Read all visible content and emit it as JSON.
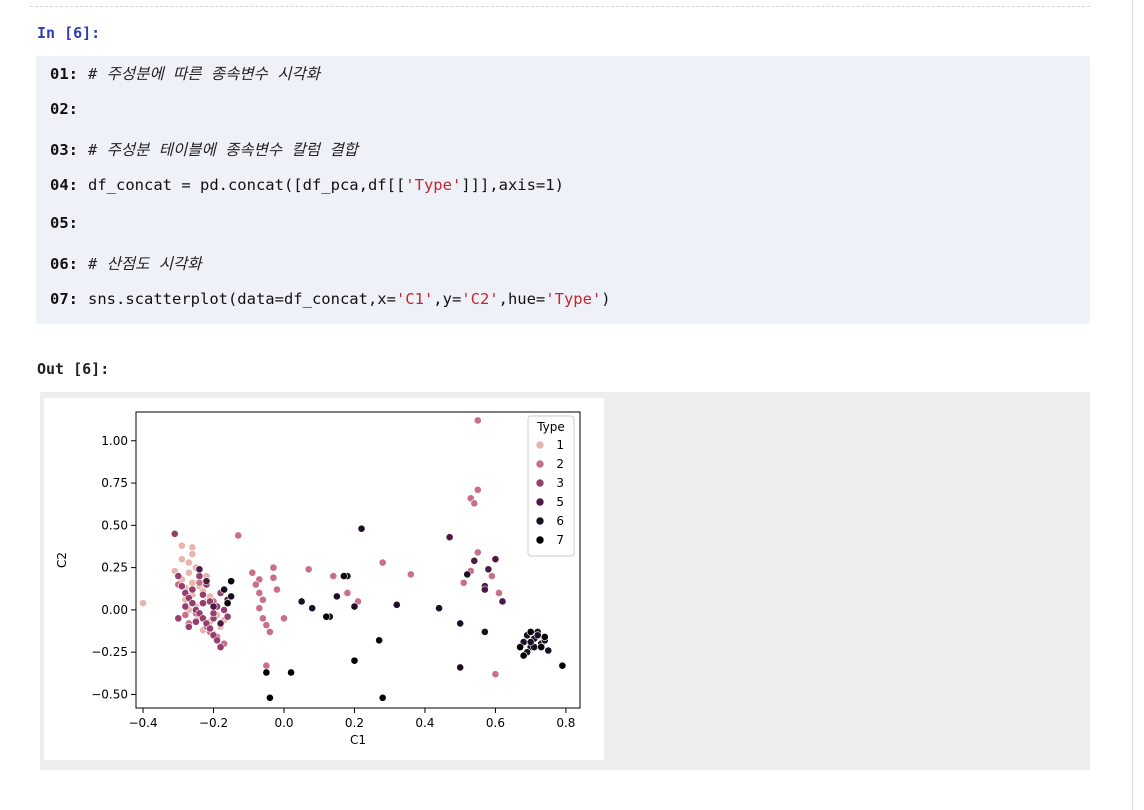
{
  "cell": {
    "in_prompt": "In [6]:",
    "out_prompt": "Out [6]:",
    "code_lines": [
      {
        "num": "01:",
        "parts": [
          {
            "t": "# 주성분에 따른 종속변수 시각화",
            "k": "comment"
          }
        ]
      },
      {
        "num": "02:",
        "parts": []
      },
      {
        "num": "03:",
        "parts": [
          {
            "t": "# 주성분 테이블에 종속변수 칼럼 결합",
            "k": "comment"
          }
        ]
      },
      {
        "num": "04:",
        "parts": [
          {
            "t": "df_concat = pd.concat([df_pca,df[[",
            "k": "code"
          },
          {
            "t": "'Type'",
            "k": "string"
          },
          {
            "t": "]]],axis=1)",
            "k": "code"
          }
        ]
      },
      {
        "num": "05:",
        "parts": []
      },
      {
        "num": "06:",
        "parts": [
          {
            "t": "# 산점도 시각화",
            "k": "comment"
          }
        ]
      },
      {
        "num": "07:",
        "parts": [
          {
            "t": "sns.scatterplot(data=df_concat,x=",
            "k": "code"
          },
          {
            "t": "'C1'",
            "k": "string"
          },
          {
            "t": ",y=",
            "k": "code"
          },
          {
            "t": "'C2'",
            "k": "string"
          },
          {
            "t": ",hue=",
            "k": "code"
          },
          {
            "t": "'Type'",
            "k": "string"
          },
          {
            "t": ")",
            "k": "code"
          }
        ]
      }
    ]
  },
  "chart_data": {
    "type": "scatter",
    "xlabel": "C1",
    "ylabel": "C2",
    "xlim": [
      -0.42,
      0.84
    ],
    "ylim": [
      -0.58,
      1.17
    ],
    "xticks": [
      -0.4,
      -0.2,
      0.0,
      0.2,
      0.4,
      0.6,
      0.8
    ],
    "xtick_labels": [
      "−0.4",
      "−0.2",
      "0.0",
      "0.2",
      "0.4",
      "0.6",
      "0.8"
    ],
    "yticks": [
      -0.5,
      -0.25,
      0.0,
      0.25,
      0.5,
      0.75,
      1.0
    ],
    "ytick_labels": [
      "−0.50",
      "−0.25",
      "0.00",
      "0.25",
      "0.50",
      "0.75",
      "1.00"
    ],
    "legend": {
      "title": "Type",
      "placement": "top-right"
    },
    "series": [
      {
        "name": "1",
        "color": "#e8b4ad",
        "points": [
          [
            -0.4,
            0.04
          ],
          [
            -0.29,
            0.38
          ],
          [
            -0.26,
            0.37
          ],
          [
            -0.29,
            0.3
          ],
          [
            -0.27,
            0.28
          ],
          [
            -0.31,
            0.23
          ],
          [
            -0.27,
            0.22
          ],
          [
            -0.29,
            0.18
          ],
          [
            -0.26,
            0.16
          ],
          [
            -0.24,
            0.14
          ],
          [
            -0.28,
            0.13
          ],
          [
            -0.23,
            0.11
          ],
          [
            -0.26,
            0.09
          ],
          [
            -0.28,
            0.06
          ],
          [
            -0.22,
            0.05
          ],
          [
            -0.25,
            0.02
          ],
          [
            -0.27,
            0.0
          ],
          [
            -0.2,
            -0.01
          ],
          [
            -0.24,
            -0.04
          ],
          [
            -0.21,
            -0.07
          ],
          [
            -0.18,
            -0.1
          ],
          [
            -0.23,
            -0.12
          ],
          [
            -0.2,
            -0.14
          ],
          [
            -0.17,
            -0.06
          ],
          [
            -0.19,
            -0.03
          ],
          [
            -0.26,
            0.33
          ],
          [
            -0.22,
            0.2
          ],
          [
            -0.25,
            0.25
          ],
          [
            -0.21,
            0.08
          ],
          [
            -0.3,
            0.2
          ]
        ]
      },
      {
        "name": "2",
        "color": "#c87087",
        "points": [
          [
            -0.13,
            0.44
          ],
          [
            -0.09,
            0.22
          ],
          [
            -0.07,
            0.18
          ],
          [
            -0.08,
            0.15
          ],
          [
            -0.07,
            0.1
          ],
          [
            -0.06,
            0.06
          ],
          [
            -0.07,
            0.01
          ],
          [
            -0.06,
            -0.05
          ],
          [
            -0.05,
            -0.09
          ],
          [
            -0.04,
            -0.13
          ],
          [
            -0.03,
            0.25
          ],
          [
            -0.03,
            0.19
          ],
          [
            -0.02,
            0.12
          ],
          [
            0.0,
            -0.05
          ],
          [
            -0.05,
            -0.33
          ],
          [
            0.07,
            0.24
          ],
          [
            0.14,
            0.2
          ],
          [
            0.18,
            0.1
          ],
          [
            0.21,
            0.05
          ],
          [
            0.28,
            0.28
          ],
          [
            0.36,
            0.21
          ],
          [
            0.53,
            0.66
          ],
          [
            0.54,
            0.63
          ],
          [
            0.55,
            0.71
          ],
          [
            0.55,
            0.34
          ],
          [
            0.51,
            0.16
          ],
          [
            0.53,
            0.23
          ],
          [
            0.59,
            0.2
          ],
          [
            0.61,
            0.1
          ],
          [
            0.6,
            -0.38
          ],
          [
            0.55,
            1.12
          ],
          [
            -0.2,
            0.05
          ],
          [
            -0.25,
            -0.02
          ],
          [
            -0.27,
            -0.08
          ],
          [
            -0.21,
            -0.13
          ],
          [
            -0.24,
            0.16
          ],
          [
            -0.17,
            -0.2
          ],
          [
            -0.22,
            -0.1
          ],
          [
            -0.3,
            0.15
          ],
          [
            -0.28,
            -0.03
          ],
          [
            -0.19,
            -0.16
          ]
        ]
      },
      {
        "name": "3",
        "color": "#963f6e",
        "points": [
          [
            -0.31,
            0.45
          ],
          [
            -0.3,
            0.2
          ],
          [
            -0.29,
            0.14
          ],
          [
            -0.28,
            0.1
          ],
          [
            -0.27,
            0.07
          ],
          [
            -0.26,
            0.04
          ],
          [
            -0.25,
            0.0
          ],
          [
            -0.24,
            -0.02
          ],
          [
            -0.23,
            -0.05
          ],
          [
            -0.22,
            -0.08
          ],
          [
            -0.21,
            -0.11
          ],
          [
            -0.2,
            -0.15
          ],
          [
            -0.19,
            -0.18
          ],
          [
            -0.18,
            -0.22
          ],
          [
            -0.26,
            0.12
          ],
          [
            -0.23,
            0.09
          ],
          [
            -0.21,
            0.05
          ],
          [
            -0.19,
            0.02
          ],
          [
            -0.17,
            0.0
          ],
          [
            -0.16,
            -0.04
          ],
          [
            -0.2,
            -0.05
          ],
          [
            -0.24,
            0.2
          ],
          [
            -0.22,
            0.15
          ],
          [
            -0.18,
            0.1
          ],
          [
            -0.28,
            0.02
          ],
          [
            -0.3,
            -0.05
          ],
          [
            -0.27,
            -0.1
          ],
          [
            -0.25,
            -0.07
          ],
          [
            -0.23,
            0.04
          ],
          [
            -0.2,
            -0.02
          ]
        ]
      },
      {
        "name": "5",
        "color": "#4e1a45",
        "points": [
          [
            -0.24,
            0.24
          ],
          [
            -0.22,
            0.17
          ],
          [
            -0.2,
            0.02
          ],
          [
            -0.18,
            -0.08
          ],
          [
            -0.16,
            0.06
          ],
          [
            0.47,
            0.43
          ],
          [
            0.54,
            0.29
          ],
          [
            0.57,
            0.14
          ],
          [
            0.58,
            0.24
          ],
          [
            0.6,
            0.3
          ],
          [
            0.57,
            0.12
          ],
          [
            0.62,
            0.05
          ]
        ]
      },
      {
        "name": "6",
        "color": "#1b0f23",
        "points": [
          [
            -0.17,
            0.12
          ],
          [
            -0.15,
            0.08
          ],
          [
            0.05,
            0.05
          ],
          [
            0.08,
            0.01
          ],
          [
            0.13,
            -0.04
          ],
          [
            0.15,
            0.08
          ],
          [
            0.18,
            0.2
          ],
          [
            0.2,
            0.02
          ],
          [
            0.22,
            0.48
          ],
          [
            0.32,
            0.03
          ],
          [
            0.44,
            0.01
          ],
          [
            0.5,
            -0.08
          ],
          [
            0.52,
            0.21
          ],
          [
            0.57,
            -0.13
          ],
          [
            0.5,
            -0.34
          ],
          [
            0.68,
            -0.19
          ],
          [
            0.69,
            -0.15
          ],
          [
            0.7,
            -0.22
          ],
          [
            0.71,
            -0.17
          ],
          [
            0.72,
            -0.13
          ],
          [
            0.73,
            -0.2
          ],
          [
            0.74,
            -0.18
          ],
          [
            0.69,
            -0.25
          ],
          [
            0.71,
            -0.22
          ],
          [
            0.75,
            -0.24
          ],
          [
            0.72,
            -0.15
          ],
          [
            0.7,
            -0.19
          ]
        ]
      },
      {
        "name": "7",
        "color": "#000000",
        "points": [
          [
            -0.16,
            0.04
          ],
          [
            -0.15,
            0.17
          ],
          [
            -0.04,
            -0.52
          ],
          [
            -0.05,
            -0.37
          ],
          [
            0.02,
            -0.37
          ],
          [
            0.12,
            -0.04
          ],
          [
            0.17,
            0.2
          ],
          [
            0.2,
            -0.3
          ],
          [
            0.27,
            -0.18
          ],
          [
            0.28,
            -0.52
          ],
          [
            0.68,
            -0.27
          ],
          [
            0.7,
            -0.13
          ],
          [
            0.73,
            -0.22
          ],
          [
            0.79,
            -0.33
          ],
          [
            0.67,
            -0.22
          ],
          [
            0.74,
            -0.16
          ]
        ]
      }
    ]
  }
}
